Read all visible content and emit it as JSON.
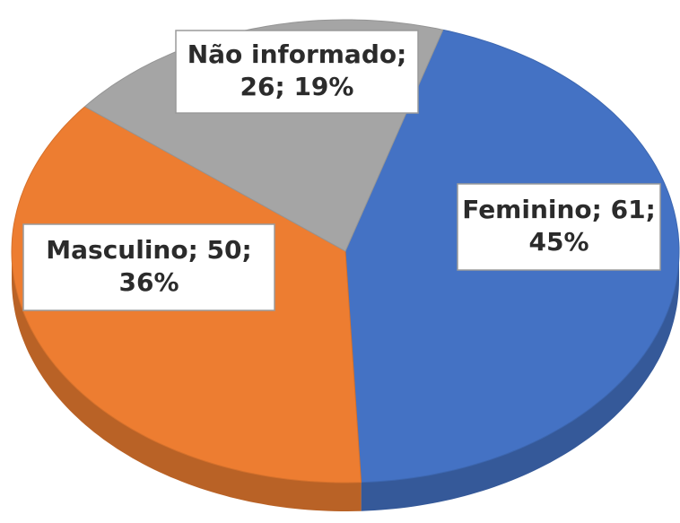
{
  "chart_data": {
    "type": "pie",
    "categories": [
      "Feminino",
      "Masculino",
      "Não informado"
    ],
    "values": [
      61,
      50,
      26
    ],
    "value_labels": [
      [
        "Feminino; 61;",
        "45%"
      ],
      [
        "Masculino; 50;",
        "36%"
      ],
      [
        "Não informado;",
        "26; 19%"
      ]
    ],
    "colors": [
      "#4472c4",
      "#ed7d31",
      "#a5a5a5"
    ],
    "three_d": true
  }
}
